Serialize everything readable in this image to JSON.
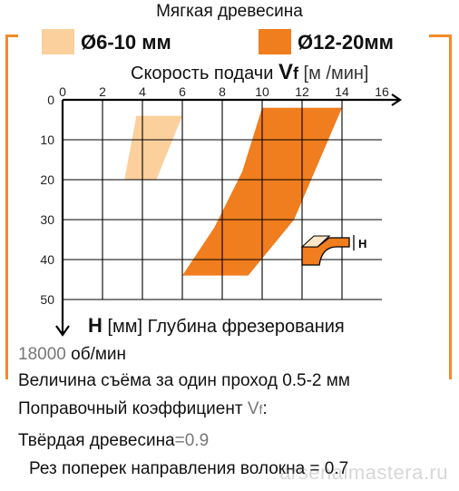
{
  "header": {
    "title": "Мягкая древесина",
    "legend": [
      {
        "label": "Ø6-10 мм",
        "color": "#fbd09c"
      },
      {
        "label": "Ø12-20мм",
        "color": "#f07d1e"
      }
    ]
  },
  "axis_x_title": {
    "text": "Скорость подачи",
    "var": "V",
    "sub": "f",
    "unit": "[м /мин]"
  },
  "axis_y_title": {
    "var": "H",
    "unit": "[мм]",
    "text": "Глубина фрезерования"
  },
  "inset_label": "H",
  "info": {
    "rpm_value": "18000",
    "rpm_unit": "об/мин",
    "removal": "Величина съёма за один проход 0.5-2 мм",
    "coef_label": "Поправочный коэффициент ",
    "coef_var": "V",
    "coef_sub": "f",
    "coef_colon": ":",
    "hardwood_label": "Твёрдая древесина",
    "hardwood_value": "=0.9",
    "crossgrain": "Рез поперек направления волокна = 0.7"
  },
  "watermark": "arsenalmastera.ru",
  "chart_data": {
    "type": "area",
    "title": "Мягкая древесина",
    "xlabel": "Скорость подачи Vf [м /мин]",
    "ylabel": "H [мм] Глубина фрезерования",
    "xlim": [
      0,
      16
    ],
    "ylim": [
      0,
      50
    ],
    "x_ticks": [
      0,
      2,
      4,
      6,
      8,
      10,
      12,
      14,
      16
    ],
    "y_ticks": [
      0,
      10,
      20,
      30,
      40,
      50
    ],
    "grid": true,
    "legend": "top",
    "series": [
      {
        "name": "Ø6-10 мм",
        "color": "#fbd09c",
        "polygon": [
          [
            3.7,
            4
          ],
          [
            6.0,
            4
          ],
          [
            4.7,
            20
          ],
          [
            3.1,
            20
          ]
        ]
      },
      {
        "name": "Ø12-20мм",
        "color": "#f07d1e",
        "polygon": [
          [
            10.0,
            2
          ],
          [
            14.0,
            2
          ],
          [
            11.6,
            30
          ],
          [
            9.3,
            44
          ],
          [
            6.0,
            44
          ],
          [
            7.6,
            32
          ],
          [
            9.0,
            18
          ]
        ]
      }
    ]
  }
}
